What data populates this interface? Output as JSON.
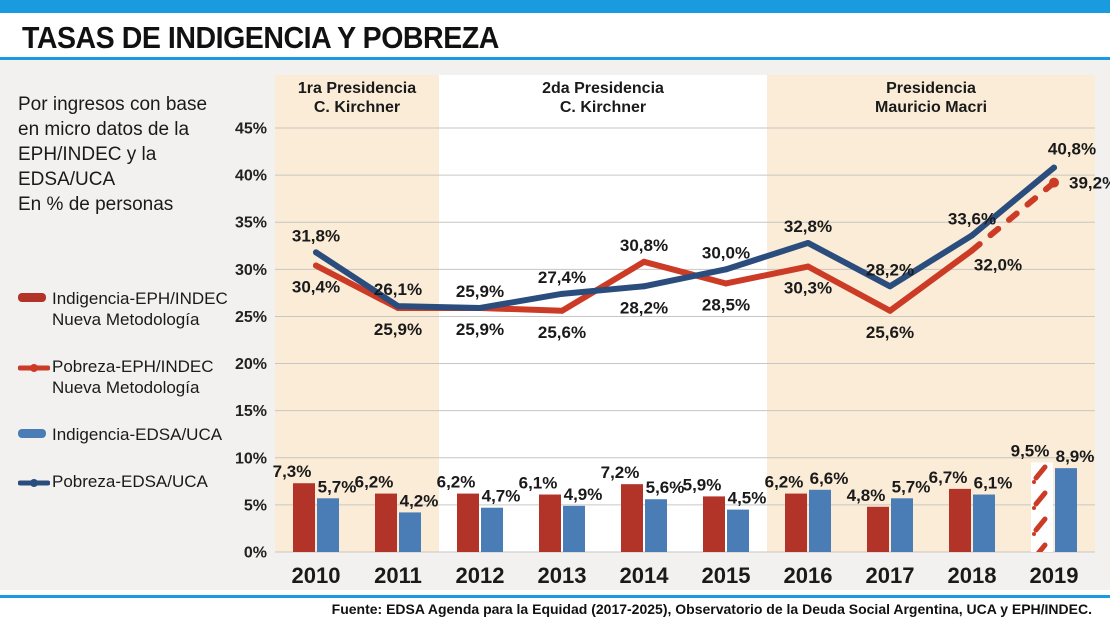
{
  "header": {
    "title": "TASAS DE INDIGENCIA Y POBREZA"
  },
  "intro": {
    "text": "Por ingresos con base\nen micro datos de la\nEPH/INDEC y la\nEDSA/UCA\nEn % de personas"
  },
  "legend": {
    "items": [
      {
        "label": "Indigencia-EPH/INDEC\nNueva Metodología",
        "swatch": "bar",
        "color": "#b23429"
      },
      {
        "label": "Pobreza-EPH/INDEC\nNueva Metodología",
        "swatch": "line",
        "color": "#cc3b25"
      },
      {
        "label": "Indigencia-EDSA/UCA",
        "swatch": "bar",
        "color": "#4a7cb5"
      },
      {
        "label": "Pobreza-EDSA/UCA",
        "swatch": "line",
        "color": "#2b4d7e"
      }
    ]
  },
  "footer": {
    "source": "Fuente: EDSA Agenda para la Equidad (2017-2025), Observatorio de la Deuda Social Argentina, UCA y EPH/INDEC."
  },
  "colors": {
    "accent_blue": "#1a9bdf",
    "shade_beige": "#faecd7",
    "plot_white": "#ffffff",
    "grid": "#c8c6c2",
    "bar_red": "#b23429",
    "bar_blue": "#4a7cb5",
    "line_red": "#cc3b25",
    "line_navy": "#2b4d7e"
  },
  "chart_data": {
    "type": "combo-bar-line",
    "categories": [
      "2010",
      "2011",
      "2012",
      "2013",
      "2014",
      "2015",
      "2016",
      "2017",
      "2018",
      "2019"
    ],
    "y_axis": {
      "min": 0,
      "max": 45,
      "step": 5,
      "suffix": "%"
    },
    "grid": true,
    "legend_position": "left",
    "periods": [
      {
        "label": "1ra Presidencia\nC. Kirchner",
        "start": "2010",
        "end": "2011",
        "shaded": true
      },
      {
        "label": "2da Presidencia\nC. Kirchner",
        "start": "2012",
        "end": "2015",
        "shaded": false
      },
      {
        "label": "Presidencia\nMauricio Macri",
        "start": "2016",
        "end": "2019",
        "shaded": true
      }
    ],
    "bar_series": [
      {
        "name": "Indigencia-EPH/INDEC Nueva Metodología",
        "color": "#b23429",
        "values": [
          7.3,
          6.2,
          6.2,
          6.1,
          7.2,
          5.9,
          6.2,
          4.8,
          6.7,
          9.5
        ],
        "hatched_indices": [
          9
        ]
      },
      {
        "name": "Indigencia-EDSA/UCA",
        "color": "#4a7cb5",
        "values": [
          5.7,
          4.2,
          4.7,
          4.9,
          5.6,
          4.5,
          6.6,
          5.7,
          6.1,
          8.9
        ],
        "hatched_indices": []
      }
    ],
    "line_series": [
      {
        "name": "Pobreza-EPH/INDEC Nueva Metodología",
        "color": "#cc3b25",
        "values": [
          30.4,
          25.9,
          25.9,
          25.6,
          30.8,
          28.5,
          30.3,
          25.6,
          32.0,
          39.2
        ],
        "dashed_from_index": 8,
        "end_dot": true,
        "label_pos": [
          "below",
          "below",
          "below",
          "below",
          "above",
          "below",
          "below",
          "below",
          "below-right",
          "right"
        ]
      },
      {
        "name": "Pobreza-EDSA/UCA",
        "color": "#2b4d7e",
        "values": [
          31.8,
          26.1,
          25.9,
          27.4,
          28.2,
          30.0,
          32.8,
          28.2,
          33.6,
          40.8
        ],
        "dashed_from_index": null,
        "end_dot": false,
        "label_pos": [
          "above",
          "above",
          "above",
          "above",
          "below",
          "above",
          "above",
          "above",
          "above",
          "above-right"
        ]
      }
    ]
  }
}
